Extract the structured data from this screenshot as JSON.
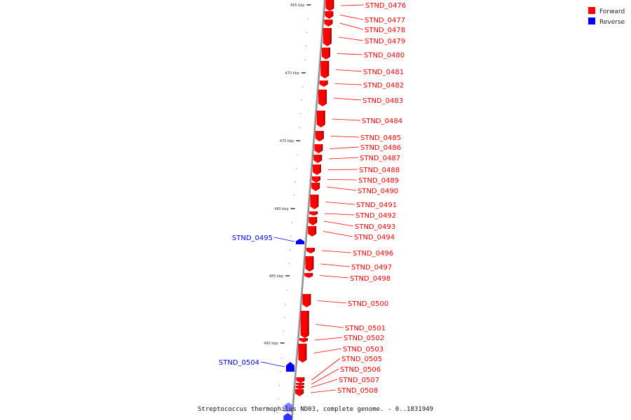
{
  "caption": "Streptococcus thermophilus ND03, complete genome. - 0..1831949",
  "legend": {
    "forward": {
      "label": "Forward",
      "color": "#ff0000"
    },
    "reverse": {
      "label": "Reverse",
      "color": "#0000ff"
    }
  },
  "scale_ticks": [
    {
      "label": "465 kbp"
    },
    {
      "label": "470 kbp"
    },
    {
      "label": "475 kbp"
    },
    {
      "label": "480 kbp"
    },
    {
      "label": "485 kbp"
    },
    {
      "label": "490 kbp"
    }
  ],
  "genes": {
    "forward": [
      "STND_0476",
      "STND_0477",
      "STND_0478",
      "STND_0479",
      "STND_0480",
      "STND_0481",
      "STND_0482",
      "STND_0483",
      "STND_0484",
      "STND_0485",
      "STND_0486",
      "STND_0487",
      "STND_0488",
      "STND_0489",
      "STND_0490",
      "STND_0491",
      "STND_0492",
      "STND_0493",
      "STND_0494",
      "STND_0496",
      "STND_0497",
      "STND_0498",
      "STND_0500",
      "STND_0501",
      "STND_0502",
      "STND_0503",
      "STND_0505",
      "STND_0506",
      "STND_0507",
      "STND_0508"
    ],
    "reverse": [
      "STND_0495",
      "STND_0504"
    ]
  }
}
